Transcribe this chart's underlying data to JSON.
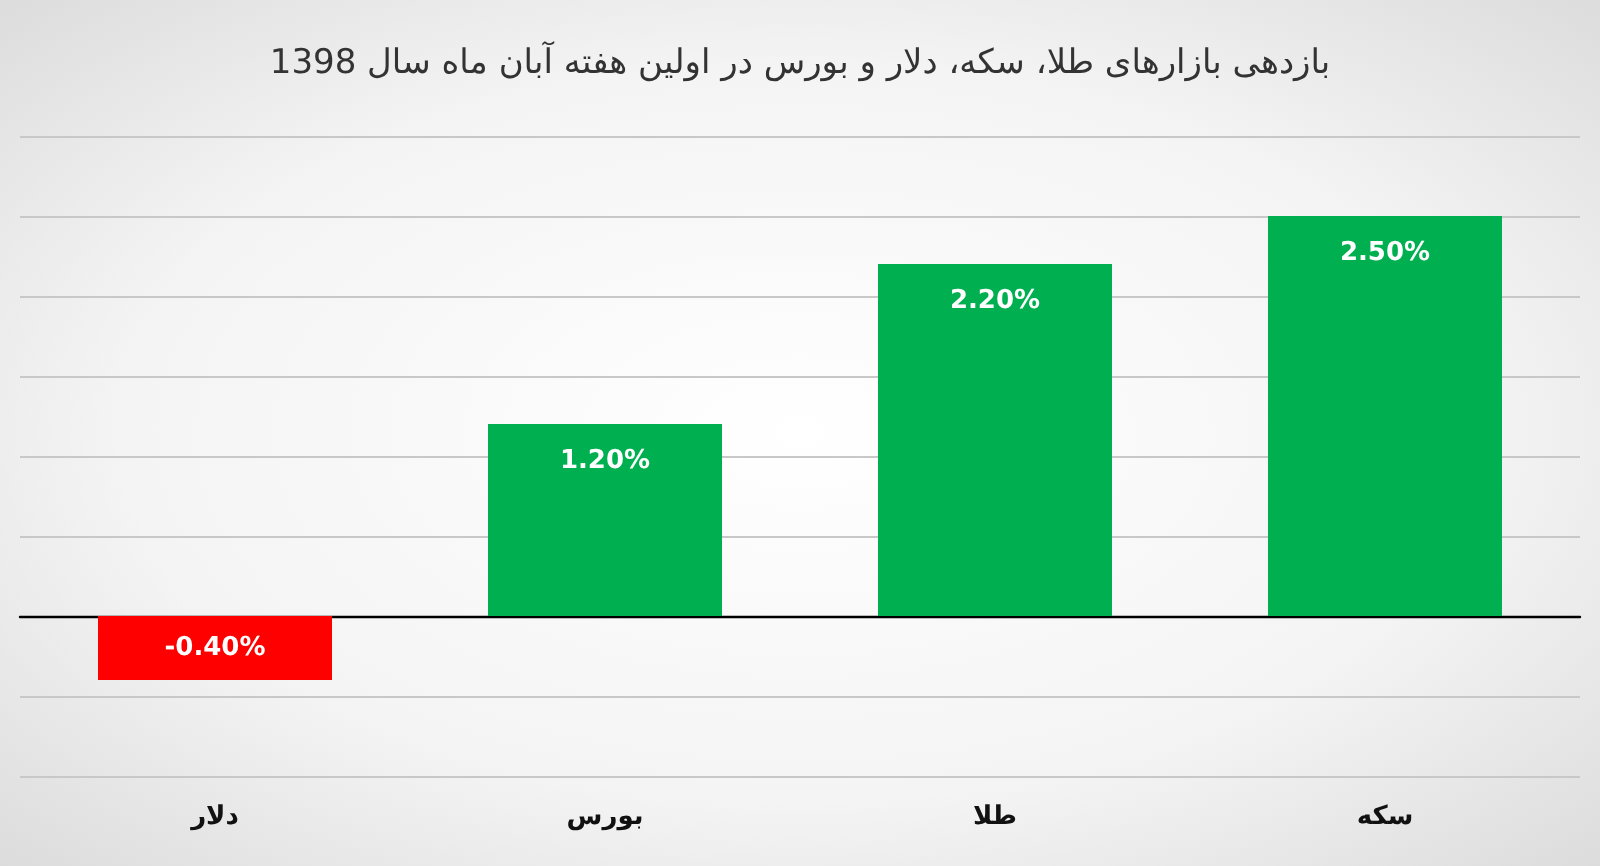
{
  "chart_data": {
    "type": "bar",
    "title": "بازدهی بازارهای طلا، سکه، دلار و بورس در اولین هفته آبان ماه سال 1398",
    "categories": [
      "دلار",
      "بورس",
      "طلا",
      "سکه"
    ],
    "values": [
      -0.4,
      1.2,
      2.2,
      2.5
    ],
    "colors": [
      "#ff0000",
      "#00b050",
      "#00b050",
      "#00b050"
    ],
    "value_labels": [
      "-0.40%",
      "1.20%",
      "2.20%",
      "2.50%"
    ],
    "ylim": [
      -1,
      3
    ],
    "yticks": [
      {
        "value": -1,
        "label": null
      },
      {
        "value": -0.5,
        "label": null
      },
      {
        "value": 0,
        "label": null
      },
      {
        "value": 0.5,
        "label": null
      },
      {
        "value": 1,
        "label": null
      },
      {
        "value": 1.5,
        "label": null
      },
      {
        "value": 2,
        "label": null
      },
      {
        "value": 2.5,
        "label": null
      },
      {
        "value": 3,
        "label": null
      }
    ],
    "tick_labels": "x",
    "grid": "y"
  }
}
